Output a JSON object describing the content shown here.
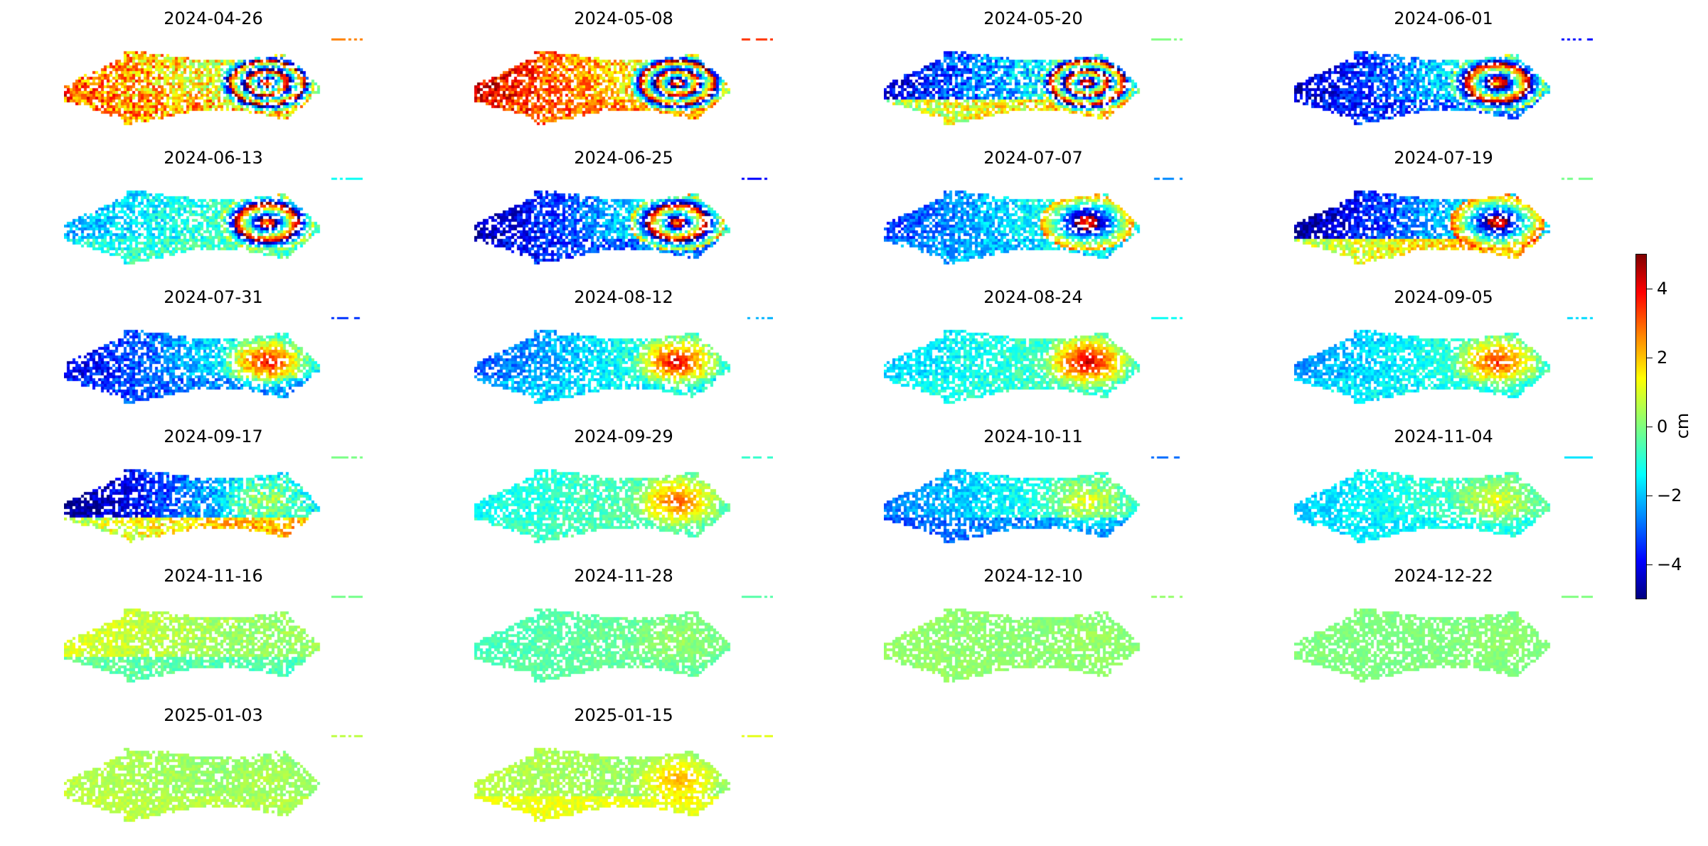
{
  "chart_data": {
    "type": "heatmap",
    "title": "",
    "colormap": "jet",
    "panels": [
      {
        "date": "2024-04-26",
        "west": 2.5,
        "south": 2.5,
        "uplift": 3.0,
        "fringes": 3,
        "noise": 1.5
      },
      {
        "date": "2024-05-08",
        "west": 3.5,
        "south": 3.0,
        "uplift": 3.0,
        "fringes": 3,
        "noise": 1.2
      },
      {
        "date": "2024-05-20",
        "west": -3.5,
        "south": 3.5,
        "uplift": 3.0,
        "fringes": 3,
        "noise": 1.2
      },
      {
        "date": "2024-06-01",
        "west": -3.8,
        "south": -3.5,
        "uplift": 3.0,
        "fringes": 2,
        "noise": 1.0
      },
      {
        "date": "2024-06-13",
        "west": -1.8,
        "south": -0.5,
        "uplift": 3.2,
        "fringes": 2,
        "noise": 0.8
      },
      {
        "date": "2024-06-25",
        "west": -4.0,
        "south": -3.5,
        "uplift": 3.5,
        "fringes": 2,
        "noise": 0.9
      },
      {
        "date": "2024-07-07",
        "west": -2.8,
        "south": -2.0,
        "uplift": 3.8,
        "fringes": 1,
        "noise": 0.8
      },
      {
        "date": "2024-07-19",
        "west": -4.2,
        "south": 4.0,
        "uplift": 4.0,
        "fringes": 1,
        "noise": 0.9
      },
      {
        "date": "2024-07-31",
        "west": -3.5,
        "south": -3.0,
        "uplift": 4.0,
        "fringes": 0,
        "noise": 0.8
      },
      {
        "date": "2024-08-12",
        "west": -2.5,
        "south": -1.5,
        "uplift": 4.2,
        "fringes": 0,
        "noise": 0.7
      },
      {
        "date": "2024-08-24",
        "west": -1.5,
        "south": -0.8,
        "uplift": 4.5,
        "fringes": 0,
        "noise": 0.6
      },
      {
        "date": "2024-09-05",
        "west": -2.0,
        "south": -1.2,
        "uplift": 3.5,
        "fringes": 0,
        "noise": 0.6
      },
      {
        "date": "2024-09-17",
        "west": -4.3,
        "south": 4.2,
        "uplift": 0.5,
        "fringes": 0,
        "noise": 0.9
      },
      {
        "date": "2024-09-29",
        "west": -1.0,
        "south": -0.5,
        "uplift": 3.0,
        "fringes": 0,
        "noise": 0.5
      },
      {
        "date": "2024-10-11",
        "west": -2.2,
        "south": -3.2,
        "uplift": 1.0,
        "fringes": 0,
        "noise": 0.6
      },
      {
        "date": "2024-11-04",
        "west": -1.5,
        "south": -1.5,
        "uplift": 1.0,
        "fringes": 0,
        "noise": 0.5
      },
      {
        "date": "2024-11-16",
        "west": 0.8,
        "south": -1.0,
        "uplift": 0.2,
        "fringes": 0,
        "noise": 0.4
      },
      {
        "date": "2024-11-28",
        "west": -0.5,
        "south": -0.3,
        "uplift": 0.3,
        "fringes": 0,
        "noise": 0.3
      },
      {
        "date": "2024-12-10",
        "west": 0.2,
        "south": 0.2,
        "uplift": 0.3,
        "fringes": 0,
        "noise": 0.25
      },
      {
        "date": "2024-12-22",
        "west": 0.0,
        "south": 0.0,
        "uplift": 0.2,
        "fringes": 0,
        "noise": 0.2
      },
      {
        "date": "2025-01-03",
        "west": 0.5,
        "south": 0.7,
        "uplift": 0.5,
        "fringes": 0,
        "noise": 0.3
      },
      {
        "date": "2025-01-15",
        "west": 0.5,
        "south": 1.5,
        "uplift": 2.2,
        "fringes": 0,
        "noise": 0.3
      }
    ],
    "colorbar": {
      "label": "cm",
      "min": -5,
      "max": 5,
      "ticks": [
        {
          "value": 4,
          "label": "4"
        },
        {
          "value": 2,
          "label": "2"
        },
        {
          "value": 0,
          "label": "0"
        },
        {
          "value": -2,
          "label": "−2"
        },
        {
          "value": -4,
          "label": "−4"
        }
      ]
    }
  }
}
